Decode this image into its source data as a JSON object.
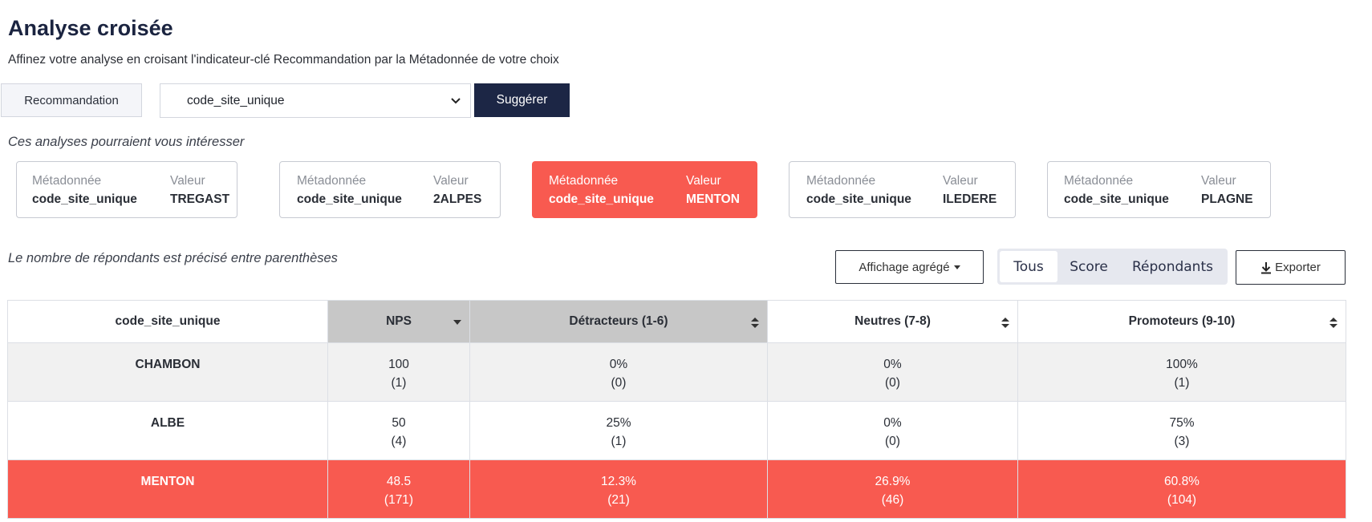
{
  "header": {
    "title": "Analyse croisée",
    "subtitle": "Affinez votre analyse en croisant l'indicateur-clé Recommandation par la Métadonnée de votre choix"
  },
  "controls": {
    "indicator": "Recommandation",
    "metadata_select": "code_site_unique",
    "suggest_label": "Suggérer"
  },
  "suggestions": {
    "heading": "Ces analyses pourraient vous intéresser",
    "meta_label": "Métadonnée",
    "value_label": "Valeur",
    "cards": [
      {
        "meta": "code_site_unique",
        "value": "TREGAST",
        "active": false
      },
      {
        "meta": "code_site_unique",
        "value": "2ALPES",
        "active": false
      },
      {
        "meta": "code_site_unique",
        "value": "MENTON",
        "active": true
      },
      {
        "meta": "code_site_unique",
        "value": "ILEDERE",
        "active": false
      },
      {
        "meta": "code_site_unique",
        "value": "PLAGNE",
        "active": false
      }
    ]
  },
  "toolbar": {
    "note": "Le nombre de répondants est précisé entre parenthèses",
    "display_label": "Affichage agrégé",
    "tabs": [
      {
        "label": "Tous",
        "active": true
      },
      {
        "label": "Score",
        "active": false
      },
      {
        "label": "Répondants",
        "active": false
      }
    ],
    "export_label": "Exporter"
  },
  "table": {
    "columns": [
      "code_site_unique",
      "NPS",
      "Détracteurs (1-6)",
      "Neutres (7-8)",
      "Promoteurs (9-10)"
    ],
    "rows": [
      {
        "site": "CHAMBON",
        "nps": "100",
        "nps_n": "(1)",
        "det": "0%",
        "det_n": "(0)",
        "neu": "0%",
        "neu_n": "(0)",
        "pro": "100%",
        "pro_n": "(1)"
      },
      {
        "site": "ALBE",
        "nps": "50",
        "nps_n": "(4)",
        "det": "25%",
        "det_n": "(1)",
        "neu": "0%",
        "neu_n": "(0)",
        "pro": "75%",
        "pro_n": "(3)"
      },
      {
        "site": "MENTON",
        "nps": "48.5",
        "nps_n": "(171)",
        "det": "12.3%",
        "det_n": "(21)",
        "neu": "26.9%",
        "neu_n": "(46)",
        "pro": "60.8%",
        "pro_n": "(104)"
      }
    ]
  },
  "colors": {
    "accent": "#f85a50",
    "navy": "#1c2645",
    "sorted_header": "#c7c7c7"
  }
}
